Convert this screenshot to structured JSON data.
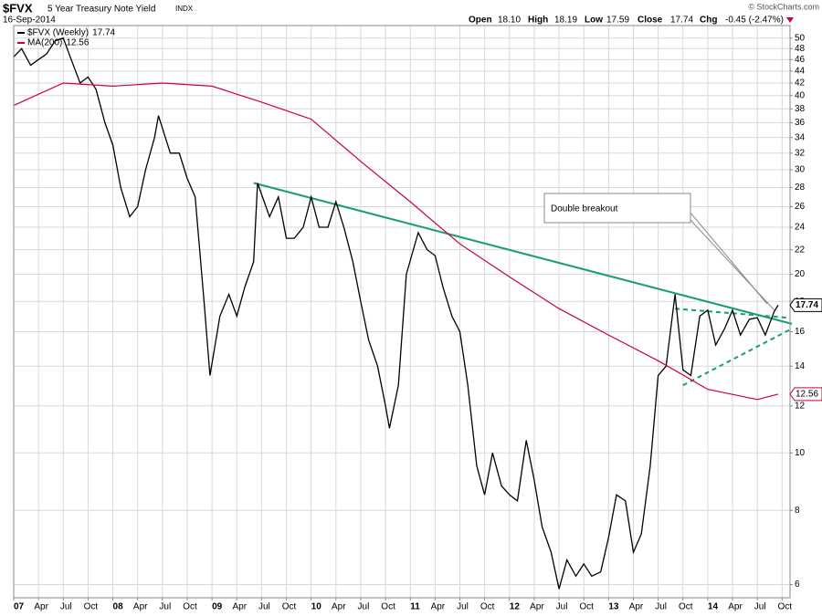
{
  "header": {
    "symbol": "$FVX",
    "name": "5 Year Treasury Note Yield",
    "exchange": "INDX",
    "date": "16-Sep-2014",
    "open_label": "Open",
    "open": "18.10",
    "high_label": "High",
    "high": "18.19",
    "low_label": "Low",
    "low": "17.59",
    "close_label": "Close",
    "close": "17.74",
    "chg_label": "Chg",
    "chg": "-0.45 (-2.47%)",
    "credit": "© StockCharts.com"
  },
  "chart_data": {
    "type": "line",
    "log_y": true,
    "grid": true,
    "legend": "top-left",
    "xlim": [
      2007,
      2014.83
    ],
    "ylim": [
      5.7,
      52.5
    ],
    "yticks": [
      6,
      8,
      10,
      12,
      14,
      16,
      18,
      20,
      22,
      24,
      26,
      28,
      30,
      32,
      34,
      36,
      38,
      40,
      42,
      44,
      46,
      48,
      50
    ],
    "xticks": [
      {
        "value": 2007,
        "label": "07"
      },
      {
        "value": 2007.25,
        "label": "Apr"
      },
      {
        "value": 2007.5,
        "label": "Jul"
      },
      {
        "value": 2007.75,
        "label": "Oct"
      },
      {
        "value": 2008,
        "label": "08"
      },
      {
        "value": 2008.25,
        "label": "Apr"
      },
      {
        "value": 2008.5,
        "label": "Jul"
      },
      {
        "value": 2008.75,
        "label": "Oct"
      },
      {
        "value": 2009,
        "label": "09"
      },
      {
        "value": 2009.25,
        "label": "Apr"
      },
      {
        "value": 2009.5,
        "label": "Jul"
      },
      {
        "value": 2009.75,
        "label": "Oct"
      },
      {
        "value": 2010,
        "label": "10"
      },
      {
        "value": 2010.25,
        "label": "Apr"
      },
      {
        "value": 2010.5,
        "label": "Jul"
      },
      {
        "value": 2010.75,
        "label": "Oct"
      },
      {
        "value": 2011,
        "label": "11"
      },
      {
        "value": 2011.25,
        "label": "Apr"
      },
      {
        "value": 2011.5,
        "label": "Jul"
      },
      {
        "value": 2011.75,
        "label": "Oct"
      },
      {
        "value": 2012,
        "label": "12"
      },
      {
        "value": 2012.25,
        "label": "Apr"
      },
      {
        "value": 2012.5,
        "label": "Jul"
      },
      {
        "value": 2012.75,
        "label": "Oct"
      },
      {
        "value": 2013,
        "label": "13"
      },
      {
        "value": 2013.25,
        "label": "Apr"
      },
      {
        "value": 2013.5,
        "label": "Jul"
      },
      {
        "value": 2013.75,
        "label": "Oct"
      },
      {
        "value": 2014,
        "label": "14"
      },
      {
        "value": 2014.25,
        "label": "Apr"
      },
      {
        "value": 2014.5,
        "label": "Jul"
      },
      {
        "value": 2014.75,
        "label": "Oct"
      }
    ],
    "series": [
      {
        "name": "$FVX (Weekly)",
        "color": "#000000",
        "x": [
          2007.0,
          2007.08,
          2007.17,
          2007.25,
          2007.33,
          2007.42,
          2007.5,
          2007.58,
          2007.67,
          2007.75,
          2007.83,
          2007.92,
          2008.0,
          2008.08,
          2008.17,
          2008.25,
          2008.33,
          2008.42,
          2008.46,
          2008.58,
          2008.67,
          2008.75,
          2008.83,
          2008.92,
          2008.98,
          2009.08,
          2009.17,
          2009.25,
          2009.33,
          2009.42,
          2009.46,
          2009.58,
          2009.67,
          2009.75,
          2009.83,
          2009.92,
          2010.0,
          2010.08,
          2010.17,
          2010.25,
          2010.33,
          2010.42,
          2010.5,
          2010.58,
          2010.67,
          2010.75,
          2010.79,
          2010.88,
          2010.96,
          2011.08,
          2011.17,
          2011.25,
          2011.33,
          2011.42,
          2011.5,
          2011.58,
          2011.67,
          2011.75,
          2011.83,
          2011.92,
          2012.0,
          2012.08,
          2012.17,
          2012.25,
          2012.33,
          2012.42,
          2012.5,
          2012.58,
          2012.67,
          2012.75,
          2012.83,
          2012.92,
          2013.0,
          2013.08,
          2013.17,
          2013.25,
          2013.33,
          2013.42,
          2013.5,
          2013.58,
          2013.67,
          2013.75,
          2013.83,
          2013.92,
          2014.0,
          2014.08,
          2014.17,
          2014.25,
          2014.33,
          2014.42,
          2014.5,
          2014.58,
          2014.67,
          2014.71
        ],
        "values": [
          46.5,
          48,
          45,
          46,
          47,
          49.5,
          50,
          46,
          42,
          43,
          41,
          36,
          33,
          28,
          25,
          26,
          30,
          34,
          37,
          32,
          32,
          29,
          27,
          18,
          13.5,
          17,
          18.5,
          17,
          19,
          21,
          28.5,
          25,
          27,
          23,
          23,
          24,
          27,
          24,
          24,
          26.5,
          24,
          21,
          18,
          15.5,
          14,
          12,
          11,
          13,
          20,
          23.5,
          22,
          21.5,
          19,
          17,
          16,
          13,
          9.5,
          8.5,
          10,
          8.8,
          8.5,
          8.3,
          10.5,
          9,
          7.5,
          6.8,
          5.9,
          6.6,
          6.2,
          6.5,
          6.2,
          6.3,
          7.2,
          8.5,
          8.3,
          6.8,
          7.3,
          9.5,
          13.5,
          14,
          18.5,
          13.8,
          13.5,
          17,
          17.4,
          15.2,
          16.2,
          17.4,
          15.8,
          16.8,
          16.9,
          15.8,
          17.3,
          17.74
        ]
      },
      {
        "name": "MA(200)",
        "color": "#cc0033",
        "x": [
          2007.0,
          2007.5,
          2008.0,
          2008.5,
          2009.0,
          2009.5,
          2010.0,
          2010.5,
          2011.0,
          2011.5,
          2012.0,
          2012.5,
          2013.0,
          2013.5,
          2014.0,
          2014.5,
          2014.71
        ],
        "values": [
          38.5,
          42,
          41.5,
          42,
          41.5,
          39,
          36.5,
          31,
          26.5,
          22.5,
          19.8,
          17.5,
          15.8,
          14.3,
          12.8,
          12.3,
          12.56
        ]
      }
    ],
    "trendlines": [
      {
        "color": "#17a06a",
        "dashed": false,
        "x": [
          2009.42,
          2014.85
        ],
        "values": [
          28.5,
          16.5
        ]
      },
      {
        "color": "#17a06a",
        "dashed": true,
        "x": [
          2013.67,
          2014.8
        ],
        "values": [
          17.5,
          16.9
        ]
      },
      {
        "color": "#17a06a",
        "dashed": true,
        "x": [
          2013.75,
          2014.85
        ],
        "values": [
          13,
          16.2
        ]
      }
    ],
    "annotation": "Double breakout"
  }
}
